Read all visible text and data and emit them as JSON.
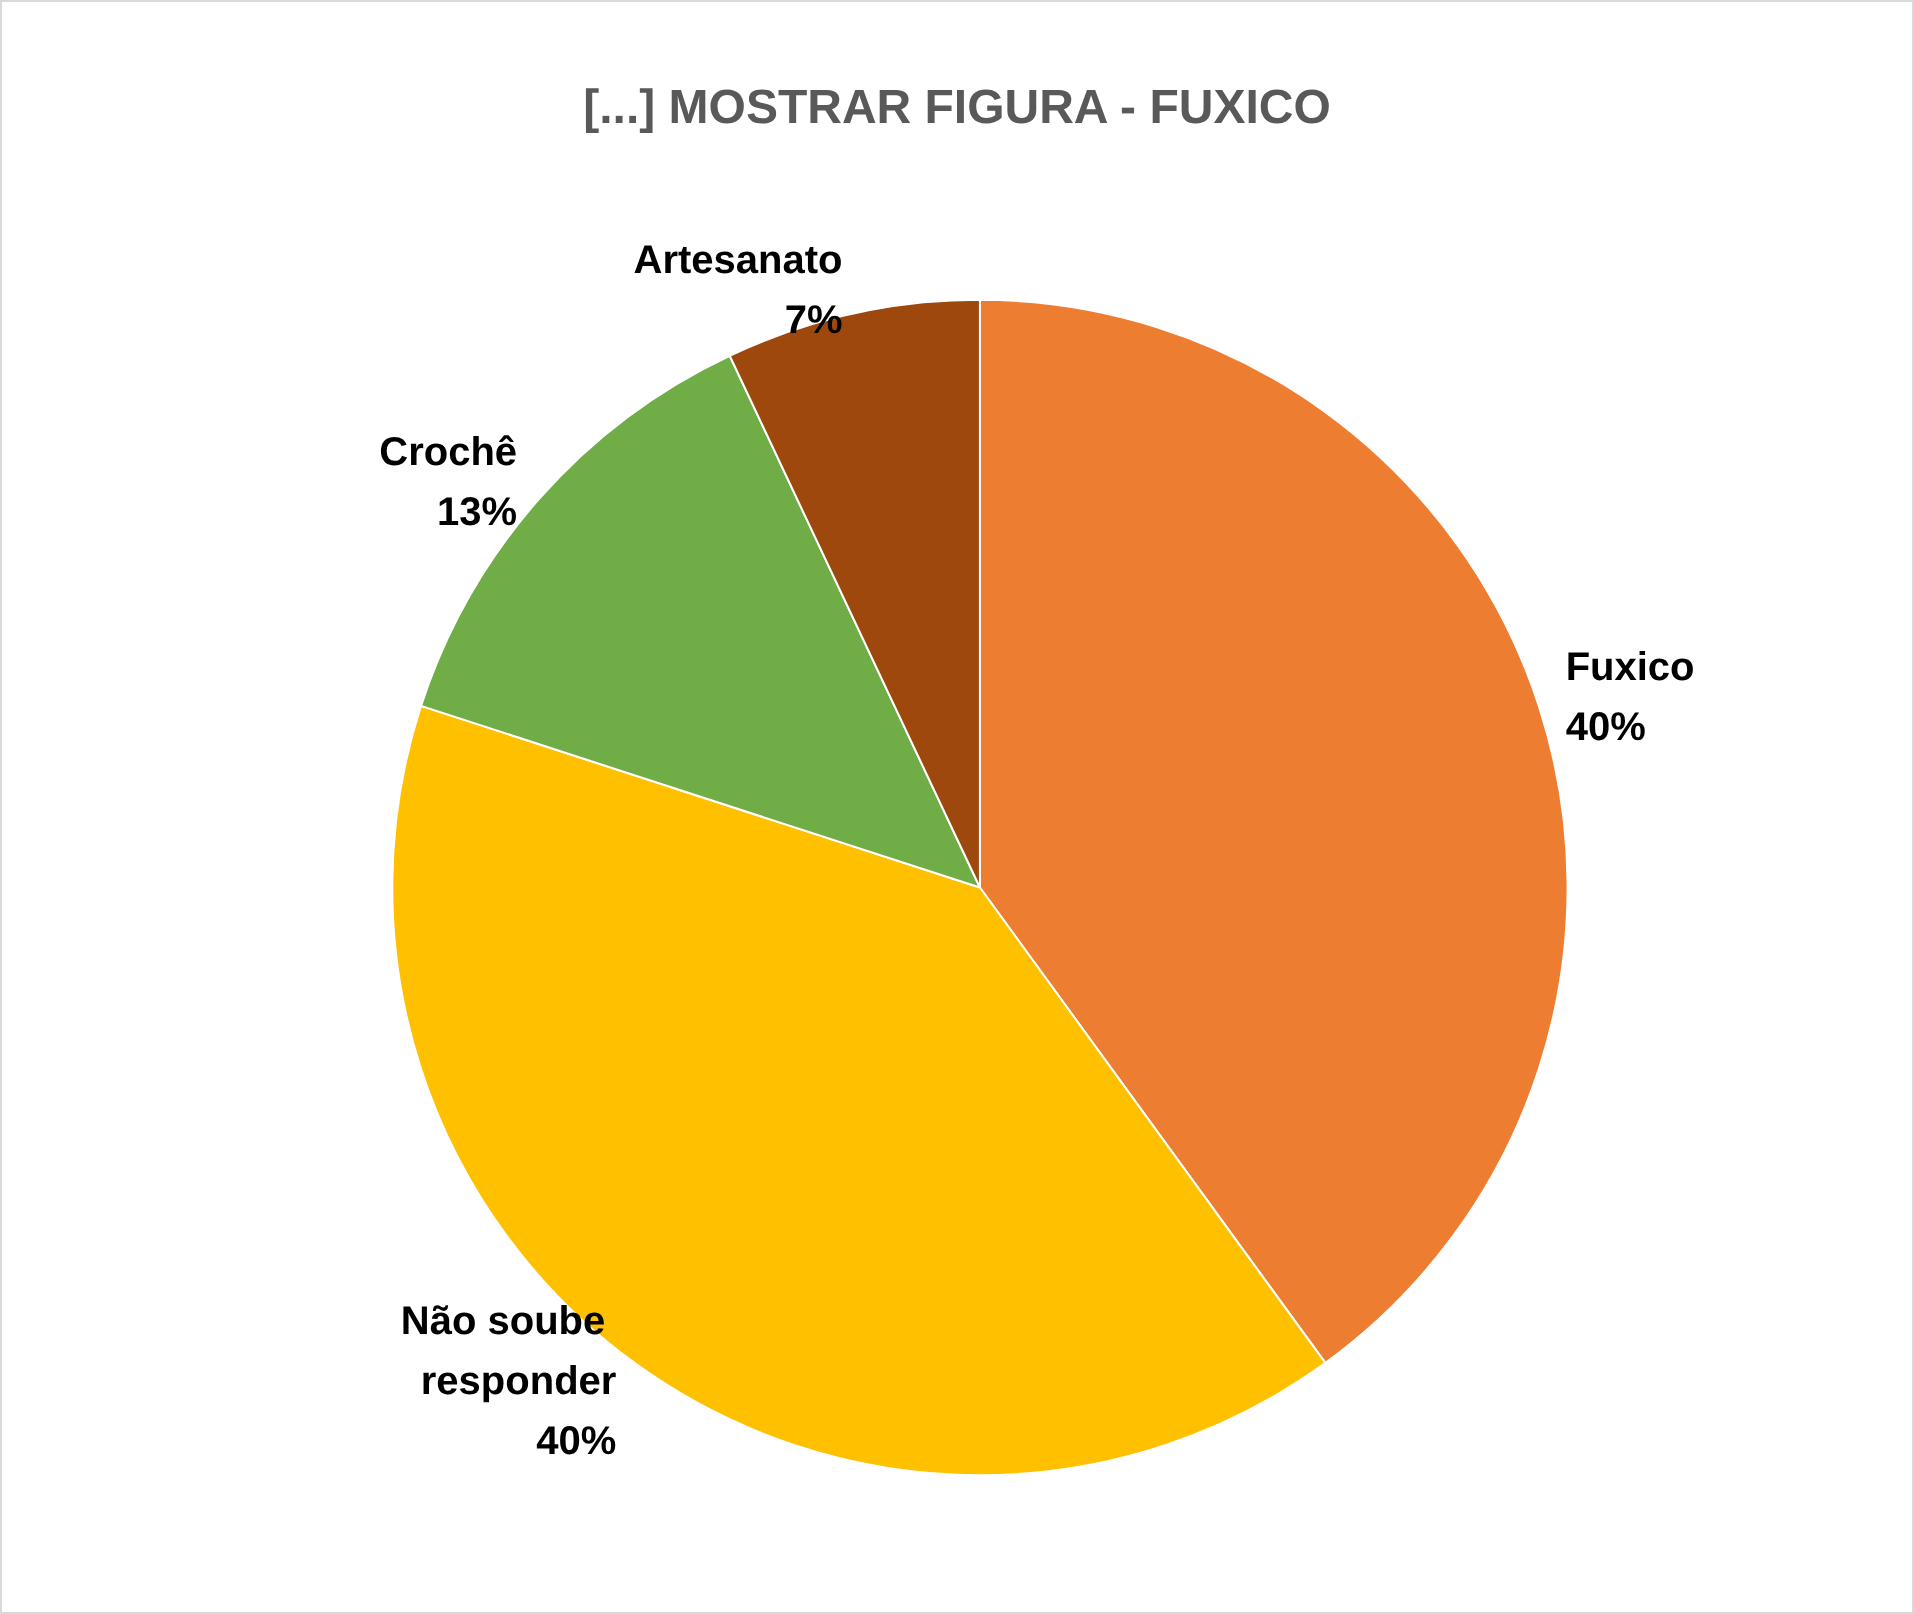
{
  "chart_data": {
    "type": "pie",
    "title": "[...] MOSTRAR FIGURA - FUXICO",
    "categories": [
      "Fuxico",
      "Não soube responder",
      "Crochê",
      "Artesanato"
    ],
    "values": [
      40,
      40,
      13,
      7
    ],
    "colors": [
      "#ed7d31",
      "#ffc000",
      "#70ad47",
      "#9e480e"
    ],
    "value_labels": [
      "40%",
      "40%",
      "13%",
      "7%"
    ],
    "legend": false
  }
}
